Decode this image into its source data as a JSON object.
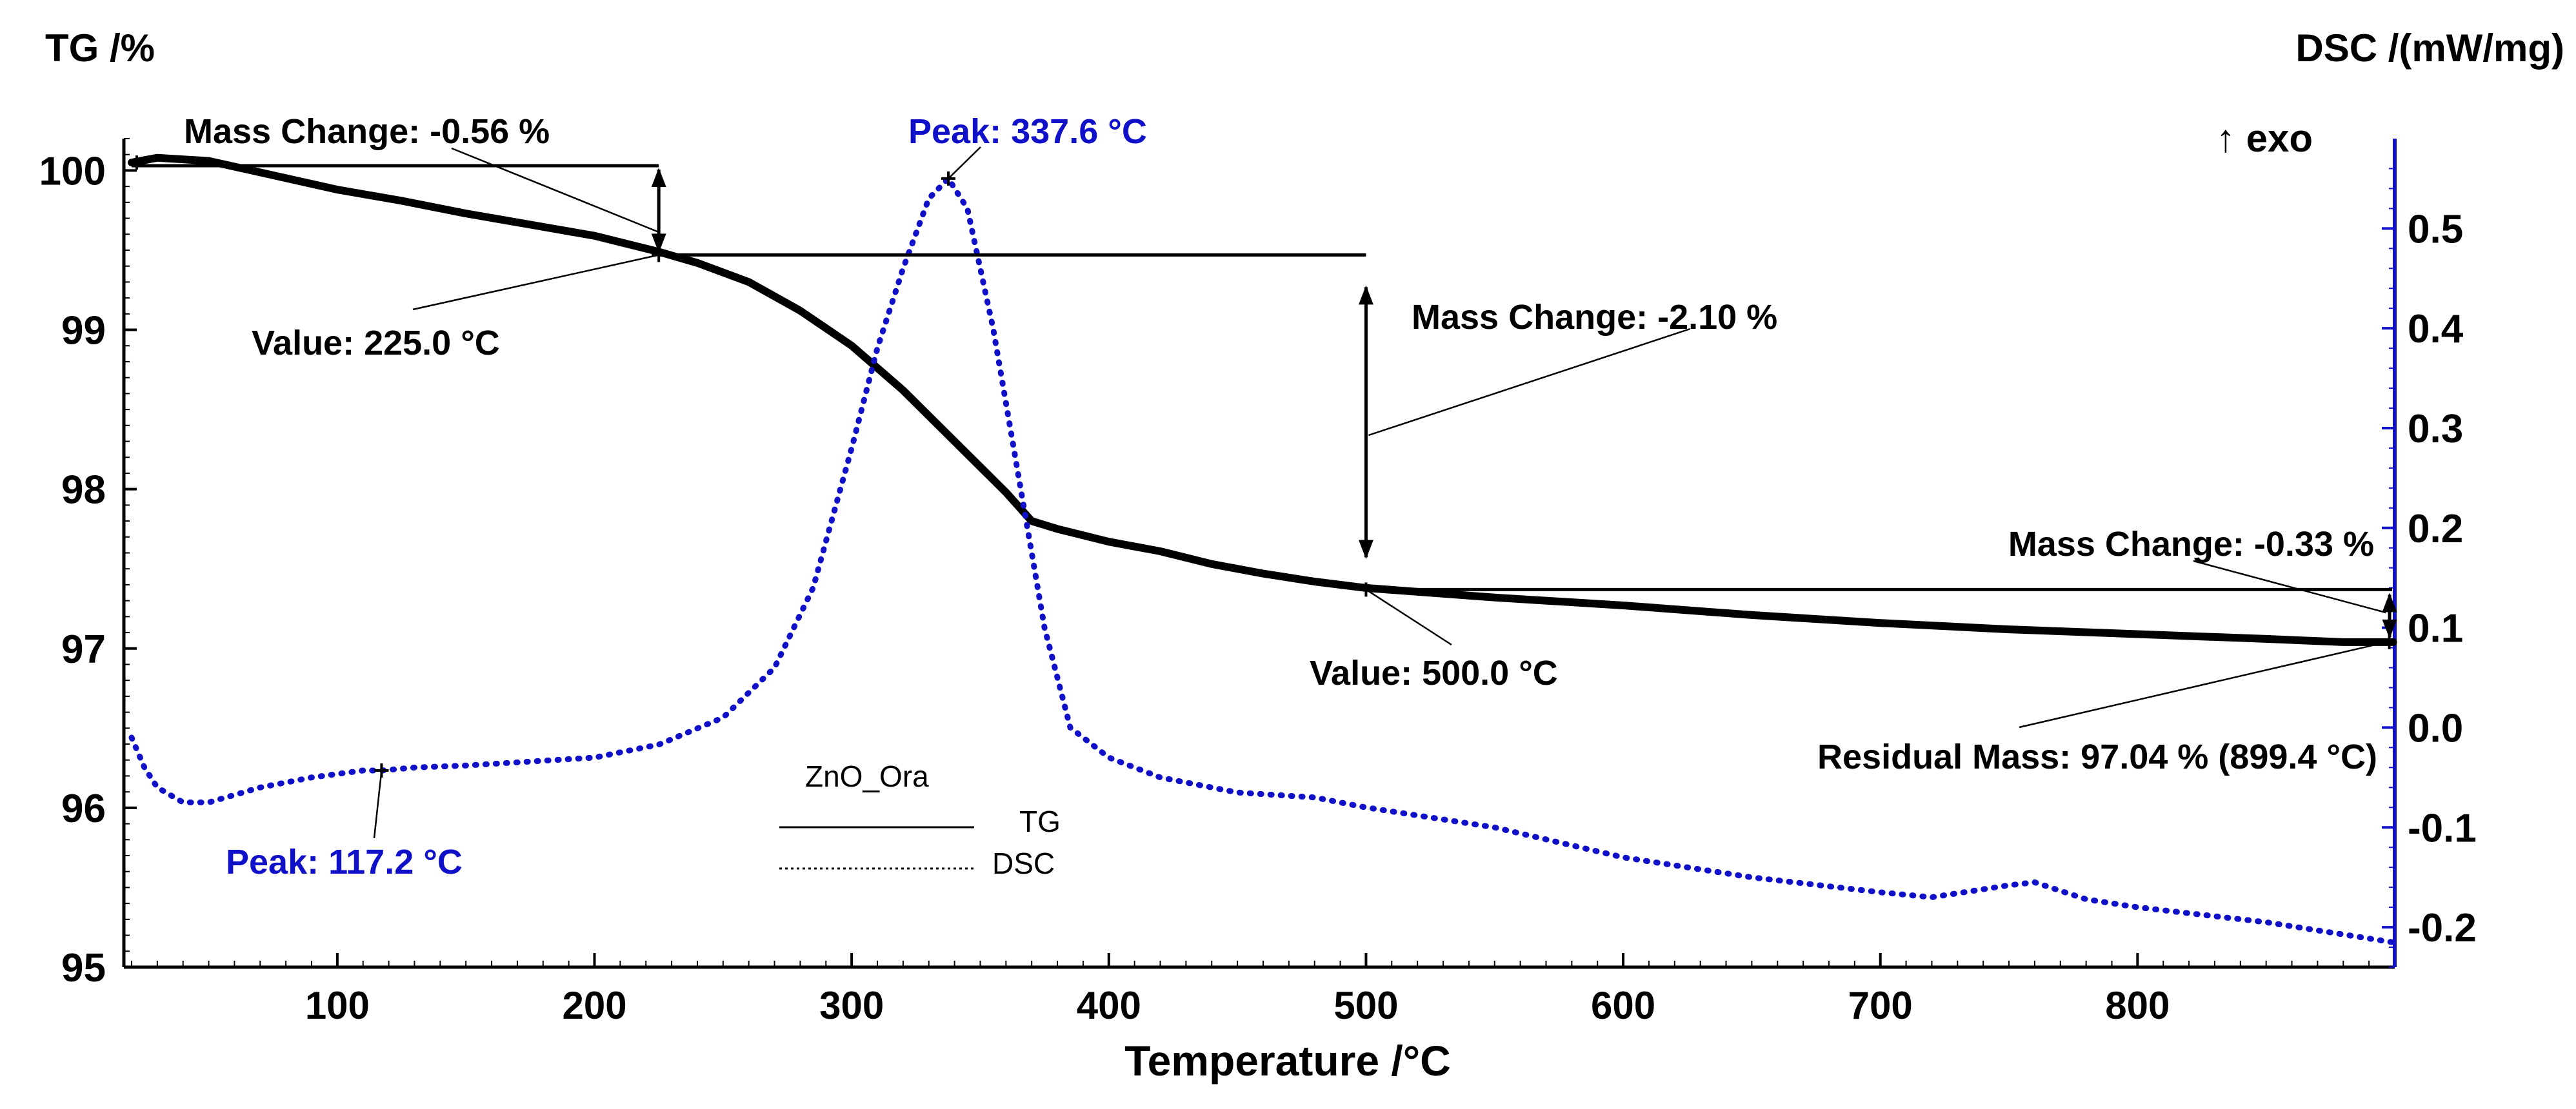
{
  "chart_data": {
    "type": "line",
    "title": "",
    "xlabel": "Temperature /°C",
    "y_left_label": "TG /%",
    "y_right_label": "DSC /(mW/mg)",
    "exo_label": "↑ exo",
    "xlim": [
      17,
      900
    ],
    "ylim_left": [
      95,
      100.2
    ],
    "ylim_right": [
      -0.24,
      0.59
    ],
    "x_ticks": [
      100,
      200,
      300,
      400,
      500,
      600,
      700,
      800
    ],
    "y_left_ticks": [
      95,
      96,
      97,
      98,
      99,
      100
    ],
    "y_right_ticks": [
      -0.2,
      -0.1,
      0.0,
      0.1,
      0.2,
      0.3,
      0.4,
      0.5
    ],
    "y_right_tick_labels": [
      "-0.2",
      "-0.1",
      "0.0",
      "0.1",
      "0.2",
      "0.3",
      "0.4",
      "0.5"
    ],
    "legend": {
      "title": "ZnO_Ora",
      "items": [
        "TG",
        "DSC"
      ],
      "position": "bottom-center"
    },
    "series": [
      {
        "name": "TG",
        "axis": "left",
        "style": "solid",
        "color": "#000000",
        "x": [
          20,
          30,
          50,
          75,
          100,
          125,
          150,
          175,
          200,
          225,
          240,
          260,
          280,
          300,
          320,
          340,
          360,
          370,
          380,
          400,
          420,
          440,
          460,
          480,
          500,
          550,
          600,
          650,
          700,
          750,
          800,
          850,
          880,
          899.4
        ],
        "y": [
          100.05,
          100.08,
          100.06,
          99.97,
          99.88,
          99.81,
          99.73,
          99.66,
          99.59,
          99.49,
          99.42,
          99.3,
          99.12,
          98.9,
          98.62,
          98.3,
          97.98,
          97.8,
          97.75,
          97.67,
          97.61,
          97.53,
          97.47,
          97.42,
          97.38,
          97.32,
          97.27,
          97.21,
          97.16,
          97.12,
          97.09,
          97.06,
          97.04,
          97.04
        ]
      },
      {
        "name": "DSC",
        "axis": "right",
        "style": "dotted",
        "color": "#1010C8",
        "x": [
          20,
          25,
          30,
          40,
          50,
          70,
          90,
          110,
          117.2,
          130,
          150,
          175,
          200,
          225,
          250,
          270,
          285,
          300,
          310,
          320,
          330,
          337.6,
          345,
          355,
          365,
          375,
          385,
          400,
          420,
          450,
          480,
          500,
          550,
          600,
          650,
          700,
          720,
          750,
          760,
          780,
          800,
          850,
          899
        ],
        "y": [
          -0.01,
          -0.04,
          -0.06,
          -0.075,
          -0.075,
          -0.06,
          -0.05,
          -0.043,
          -0.043,
          -0.04,
          -0.038,
          -0.034,
          -0.03,
          -0.017,
          0.01,
          0.06,
          0.14,
          0.28,
          0.38,
          0.46,
          0.53,
          0.55,
          0.52,
          0.4,
          0.25,
          0.1,
          0.0,
          -0.03,
          -0.05,
          -0.065,
          -0.07,
          -0.08,
          -0.1,
          -0.13,
          -0.15,
          -0.165,
          -0.17,
          -0.158,
          -0.155,
          -0.172,
          -0.18,
          -0.195,
          -0.215
        ]
      }
    ],
    "annotations": {
      "tg_peak_marker": {
        "x": 337.6
      },
      "left_mass_change": {
        "text": "Mass Change: -0.56 %",
        "x": 225,
        "from": 100.03,
        "to": 99.47,
        "bar_start": 20
      },
      "value_225": {
        "text": "Value: 225.0 °C",
        "x": 225,
        "y": 99.47
      },
      "dsc_peak_high": {
        "text": "Peak: 337.6 °C",
        "x": 337.6,
        "y": 0.55
      },
      "dsc_peak_low": {
        "text": "Peak: 117.2 °C",
        "x": 117.2,
        "y": -0.043
      },
      "mid_mass_change": {
        "text": "Mass Change: -2.10 %",
        "x": 500,
        "from": 99.47,
        "to": 97.37
      },
      "value_500": {
        "text": "Value: 500.0 °C",
        "x": 500,
        "y": 97.37
      },
      "right_mass_change": {
        "text": "Mass Change: -0.33 %",
        "x": 899,
        "from": 97.37,
        "to": 97.04
      },
      "residual": {
        "text": "Residual Mass: 97.04 % (899.4 °C)",
        "x": 899.4,
        "y": 97.04
      }
    }
  },
  "colors": {
    "tg": "#000000",
    "dsc": "#1010C8",
    "axis": "#000000",
    "annotation_blue": "#1010C8"
  }
}
